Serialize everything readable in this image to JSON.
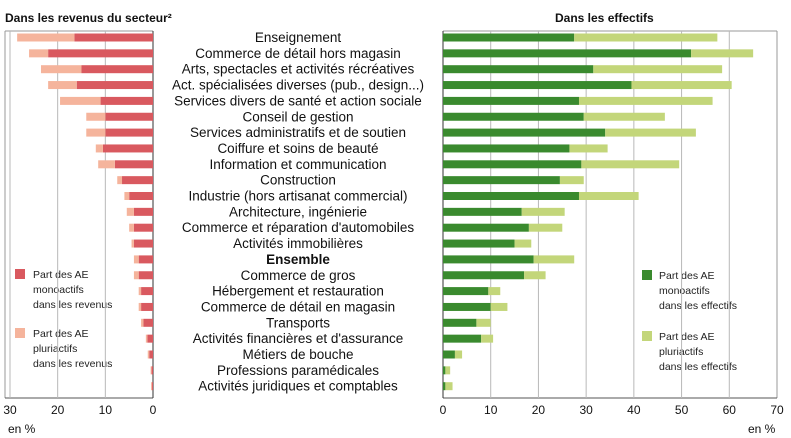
{
  "chart_data": [
    {
      "type": "bar",
      "orientation": "horizontal",
      "stacked": true,
      "title": "Dans les revenus du secteur²",
      "xlabel": "en %",
      "xlim": [
        0,
        30
      ],
      "x_reversed": true,
      "x_ticks": [
        "30",
        "20",
        "10",
        "0"
      ],
      "grid": true,
      "legend_position": "bottom-left",
      "categories": [
        "Enseignement",
        "Commerce de détail hors magasin",
        "Arts, spectacles et activités récréatives",
        "Act. spécialisées diverses (pub., design...)",
        "Services divers de santé et action sociale",
        "Conseil de gestion",
        "Services administratifs et de soutien",
        "Coiffure et soins de beauté",
        "Information et communication",
        "Construction",
        "Industrie (hors artisanat commercial)",
        "Architecture, ingénierie",
        "Commerce et réparation d'automobiles",
        "Activités immobilières",
        "Ensemble",
        "Commerce de gros",
        "Hébergement et restauration",
        "Commerce de détail en magasin",
        "Transports",
        "Activités financières et d'assurance",
        "Métiers de bouche",
        "Professions paramédicales",
        "Activités juridiques et comptables"
      ],
      "series": [
        {
          "name": "Part des AE monoactifs dans les revenus",
          "color": "#d9595f",
          "values": [
            16.5,
            22,
            15,
            16,
            11,
            10,
            10,
            10.5,
            8,
            6.5,
            5,
            4,
            4,
            4,
            3,
            3,
            2.5,
            2.5,
            2,
            1.2,
            0.8,
            0.3,
            0.2
          ]
        },
        {
          "name": "Part des AE pluriactifs dans les revenus",
          "color": "#f5b49c",
          "values": [
            12,
            4,
            8.5,
            6,
            8.5,
            4,
            4,
            1.5,
            3.5,
            1,
            1,
            1.5,
            1,
            0.5,
            1,
            1,
            0.5,
            0.5,
            0.5,
            0.3,
            0.3,
            0.2,
            0.2
          ]
        }
      ]
    },
    {
      "type": "bar",
      "orientation": "horizontal",
      "stacked": true,
      "title": "Dans les effectifs",
      "xlabel": "en %",
      "xlim": [
        0,
        70
      ],
      "x_ticks": [
        "0",
        "10",
        "20",
        "30",
        "40",
        "50",
        "60",
        "70"
      ],
      "grid": true,
      "legend_position": "bottom-right",
      "series": [
        {
          "name": "Part des AE monoactifs dans les effectifs",
          "color": "#3a8a2e",
          "values": [
            27.5,
            52,
            31.5,
            39.5,
            28.5,
            29.5,
            34,
            26.5,
            29,
            24.5,
            28.5,
            16.5,
            18,
            15,
            19,
            17,
            9.5,
            10,
            7,
            8,
            2.5,
            0.5,
            0.5
          ]
        },
        {
          "name": "Part des AE pluriactifs dans les effectifs",
          "color": "#c3d67a",
          "values": [
            30,
            13,
            27,
            21,
            28,
            17,
            19,
            8,
            20.5,
            5,
            12.5,
            9,
            7,
            3.5,
            8.5,
            4.5,
            2.5,
            3.5,
            3,
            2.5,
            1.5,
            1,
            1.5
          ]
        }
      ]
    }
  ]
}
